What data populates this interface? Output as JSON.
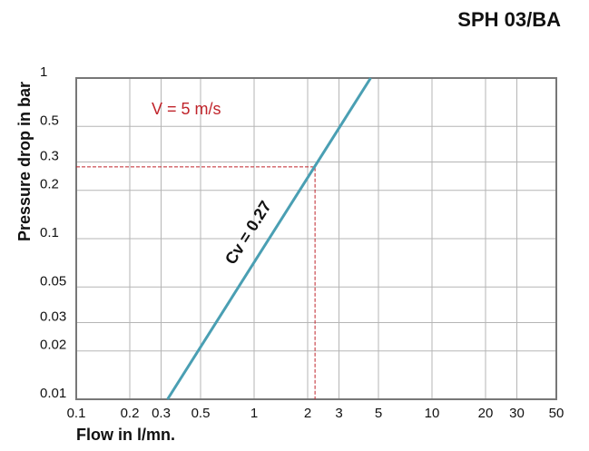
{
  "chart_data": {
    "type": "line",
    "title": "SPH 03/BA",
    "xlabel": "Flow in l/mn.",
    "ylabel": "Pressure drop in bar",
    "x": [
      0.326,
      4.52
    ],
    "values": [
      0.01,
      1
    ],
    "color": "#4a9fb3",
    "reference": {
      "x": 2.2,
      "y": 0.28,
      "color": "#c0242b"
    },
    "annotations": [
      {
        "text": "V = 5 m/s",
        "color": "#c0242b"
      },
      {
        "text": "Cv = 0.27",
        "color": "#111111"
      }
    ],
    "log_x": true,
    "log_y": true,
    "grid": true,
    "xlim": [
      0.1,
      50
    ],
    "xticks": [
      0.1,
      0.2,
      0.3,
      0.5,
      1,
      2,
      3,
      5,
      10,
      20,
      30,
      50
    ],
    "ylim": [
      0.01,
      1
    ],
    "yticks": [
      0.01,
      0.02,
      0.03,
      0.05,
      0.1,
      0.2,
      0.3,
      0.5,
      1
    ]
  }
}
